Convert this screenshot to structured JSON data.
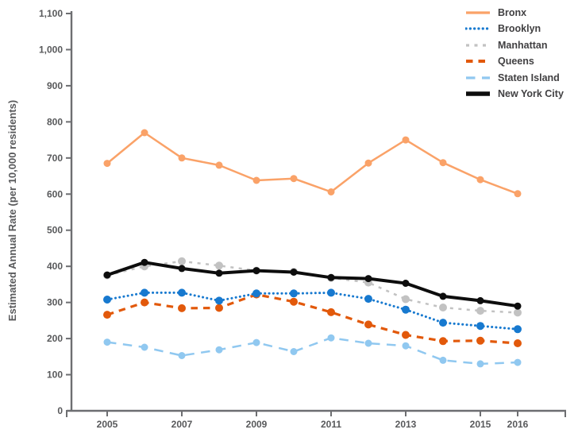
{
  "chart_data": {
    "type": "line",
    "title": "",
    "xlabel": "",
    "ylabel": "Estimated Annual Rate (per 10,000 residents)",
    "x": [
      2005,
      2006,
      2007,
      2008,
      2009,
      2010,
      2011,
      2012,
      2013,
      2014,
      2015,
      2016
    ],
    "x_tick_labels": [
      "2005",
      "2007",
      "2009",
      "2011",
      "2013",
      "2015",
      "2016"
    ],
    "ylim": [
      0,
      1100
    ],
    "y_ticks": [
      0,
      100,
      200,
      300,
      400,
      500,
      600,
      700,
      800,
      900,
      1000,
      1100
    ],
    "grid": false,
    "legend_position": "top-right",
    "series": [
      {
        "name": "Bronx",
        "color": "#faa268",
        "style": "solid",
        "values": [
          685,
          770,
          700,
          680,
          638,
          643,
          606,
          686,
          750,
          687,
          640,
          601
        ]
      },
      {
        "name": "Brooklyn",
        "color": "#1779cf",
        "style": "dotted",
        "values": [
          308,
          327,
          327,
          305,
          325,
          325,
          327,
          310,
          280,
          244,
          235,
          226
        ]
      },
      {
        "name": "Manhattan",
        "color": "#c2c2c2",
        "style": "dashed-short",
        "values": [
          375,
          400,
          414,
          402,
          388,
          385,
          368,
          355,
          309,
          286,
          277,
          272
        ]
      },
      {
        "name": "Queens",
        "color": "#e2590b",
        "style": "dashed",
        "values": [
          266,
          300,
          284,
          285,
          322,
          302,
          273,
          239,
          210,
          193,
          194,
          187
        ]
      },
      {
        "name": "Staten Island",
        "color": "#90c8f0",
        "style": "dashed-long",
        "values": [
          190,
          176,
          153,
          169,
          189,
          164,
          202,
          187,
          180,
          140,
          130,
          134
        ]
      },
      {
        "name": "New York City",
        "color": "#0d0d0d",
        "style": "solid",
        "values": [
          376,
          411,
          394,
          381,
          388,
          384,
          369,
          366,
          353,
          317,
          305,
          290
        ]
      }
    ]
  }
}
